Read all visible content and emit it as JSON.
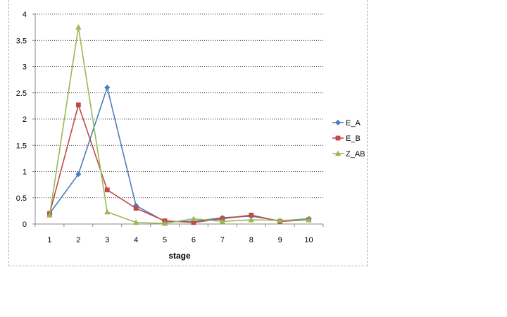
{
  "chart_data": {
    "type": "line",
    "title": "",
    "xlabel": "stage",
    "ylabel": "",
    "categories": [
      "1",
      "2",
      "3",
      "4",
      "5",
      "6",
      "7",
      "8",
      "9",
      "10"
    ],
    "ylim": [
      0,
      4
    ],
    "yticks": [
      "0",
      "0.5",
      "1",
      "1.5",
      "2",
      "2.5",
      "3",
      "3.5",
      "4"
    ],
    "grid": "horizontal-dotted",
    "legend_position": "right",
    "series": [
      {
        "name": "E_A",
        "color": "#4a7ebb",
        "marker": "diamond",
        "values": [
          0.2,
          0.95,
          2.6,
          0.35,
          0.05,
          0.05,
          0.12,
          0.15,
          0.06,
          0.1
        ]
      },
      {
        "name": "E_B",
        "color": "#be4b48",
        "marker": "square",
        "values": [
          0.2,
          2.27,
          0.65,
          0.3,
          0.06,
          0.03,
          0.1,
          0.17,
          0.05,
          0.08
        ]
      },
      {
        "name": "Z_AB",
        "color": "#98b954",
        "marker": "triangle",
        "values": [
          0.17,
          3.75,
          0.23,
          0.03,
          0.01,
          0.1,
          0.05,
          0.08,
          0.07,
          0.08
        ]
      }
    ]
  }
}
